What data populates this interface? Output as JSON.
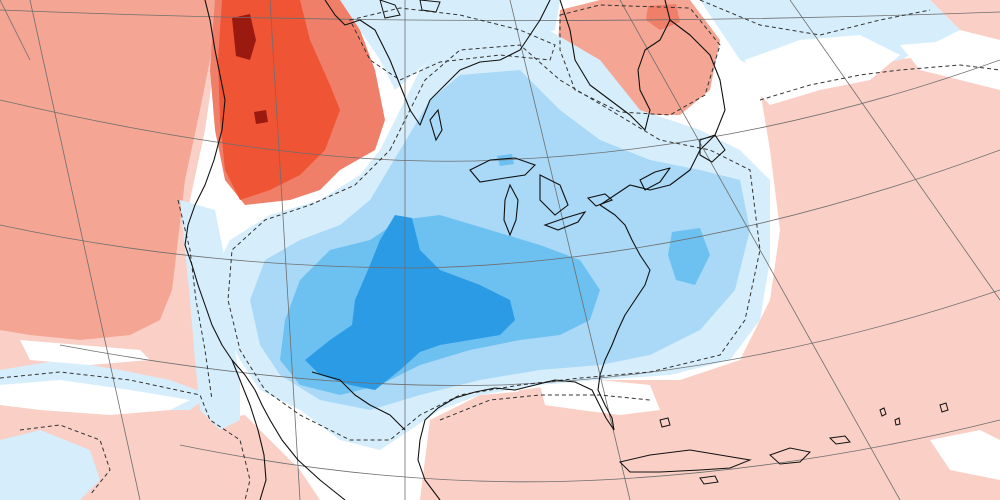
{
  "map": {
    "type": "temperature-anomaly",
    "colors": {
      "warm_1": "#f9cfc6",
      "warm_2": "#f4a593",
      "warm_3": "#f07f69",
      "warm_4": "#ef5435",
      "warm_5": "#9b1a10",
      "neutral": "#ffffff",
      "cool_1": "#d6eefc",
      "cool_2": "#a9d9f7",
      "cool_3": "#6dc1f1",
      "cool_4": "#2c9be6",
      "coastline": "#111111",
      "graticule": "#6e6e6e",
      "contour": "#333333"
    }
  }
}
